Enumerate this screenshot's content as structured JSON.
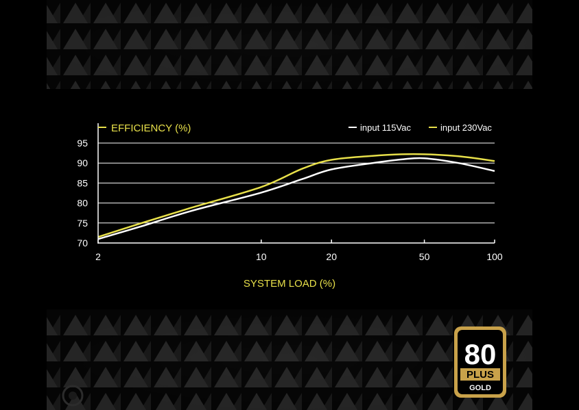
{
  "colors": {
    "background": "#000000",
    "grid": "#ffffff",
    "series_115": "#ffffff",
    "series_230": "#e8e04a",
    "logo_gold": "#c9a24a"
  },
  "chart_data": {
    "type": "line",
    "title": "EFFICIENCY (%)",
    "xlabel": "SYSTEM LOAD (%)",
    "ylabel": "",
    "x_scale": "log",
    "xlim": [
      2,
      100
    ],
    "ylim": [
      70,
      95
    ],
    "x_ticks": [
      "2",
      "10",
      "20",
      "50",
      "100"
    ],
    "x_tick_values": [
      2,
      10,
      20,
      50,
      100
    ],
    "y_ticks": [
      "95",
      "90",
      "85",
      "80",
      "75",
      "70"
    ],
    "y_tick_values": [
      95,
      90,
      85,
      80,
      75,
      70
    ],
    "grid": true,
    "legend_position": "top-right",
    "series": [
      {
        "name": "input 115Vac",
        "x": [
          2,
          3,
          5,
          10,
          15,
          20,
          30,
          40,
          50,
          70,
          100
        ],
        "y": [
          71,
          74,
          78,
          82.6,
          86,
          88.4,
          90,
          90.9,
          91.2,
          90,
          88
        ]
      },
      {
        "name": "input 230Vac",
        "x": [
          2,
          3,
          5,
          10,
          15,
          20,
          30,
          40,
          50,
          70,
          100
        ],
        "y": [
          71.5,
          74.8,
          78.8,
          84,
          88.6,
          90.8,
          91.8,
          92.2,
          92.2,
          91.7,
          90.5
        ]
      }
    ]
  },
  "badge": {
    "number": "80",
    "plus": "PLUS",
    "tier": "GOLD"
  }
}
